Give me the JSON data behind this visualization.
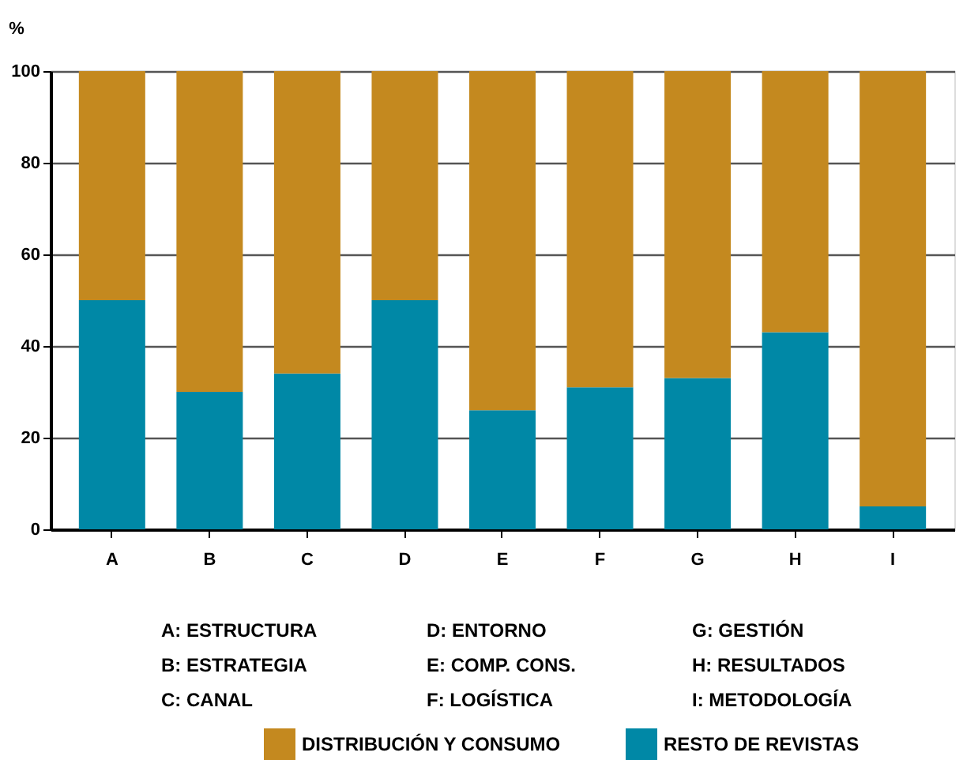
{
  "chart_data": {
    "type": "bar",
    "stacked": true,
    "ylabel": "%",
    "categories": [
      "A",
      "B",
      "C",
      "D",
      "E",
      "F",
      "G",
      "H",
      "I"
    ],
    "series": [
      {
        "name": "RESTO DE REVISTAS",
        "color": "#0088a6",
        "values": [
          50,
          30,
          34,
          50,
          26,
          31,
          33,
          43,
          5
        ]
      },
      {
        "name": "DISTRIBUCIÓN Y CONSUMO",
        "color": "#c4891f",
        "values": [
          50,
          70,
          66,
          50,
          74,
          69,
          67,
          57,
          95
        ]
      }
    ],
    "ylim": [
      0,
      100
    ],
    "yticks": [
      0,
      20,
      40,
      60,
      80,
      100
    ],
    "grid": "y",
    "legend": "bottom",
    "annotations": [
      "A: ESTRUCTURA",
      "B: ESTRATEGIA",
      "C: CANAL",
      "D: ENTORNO",
      "E: COMP. CONS.",
      "F: LOGÍSTICA",
      "G: GESTIÓN",
      "H: RESULTADOS",
      "I: METODOLOGÍA"
    ]
  }
}
